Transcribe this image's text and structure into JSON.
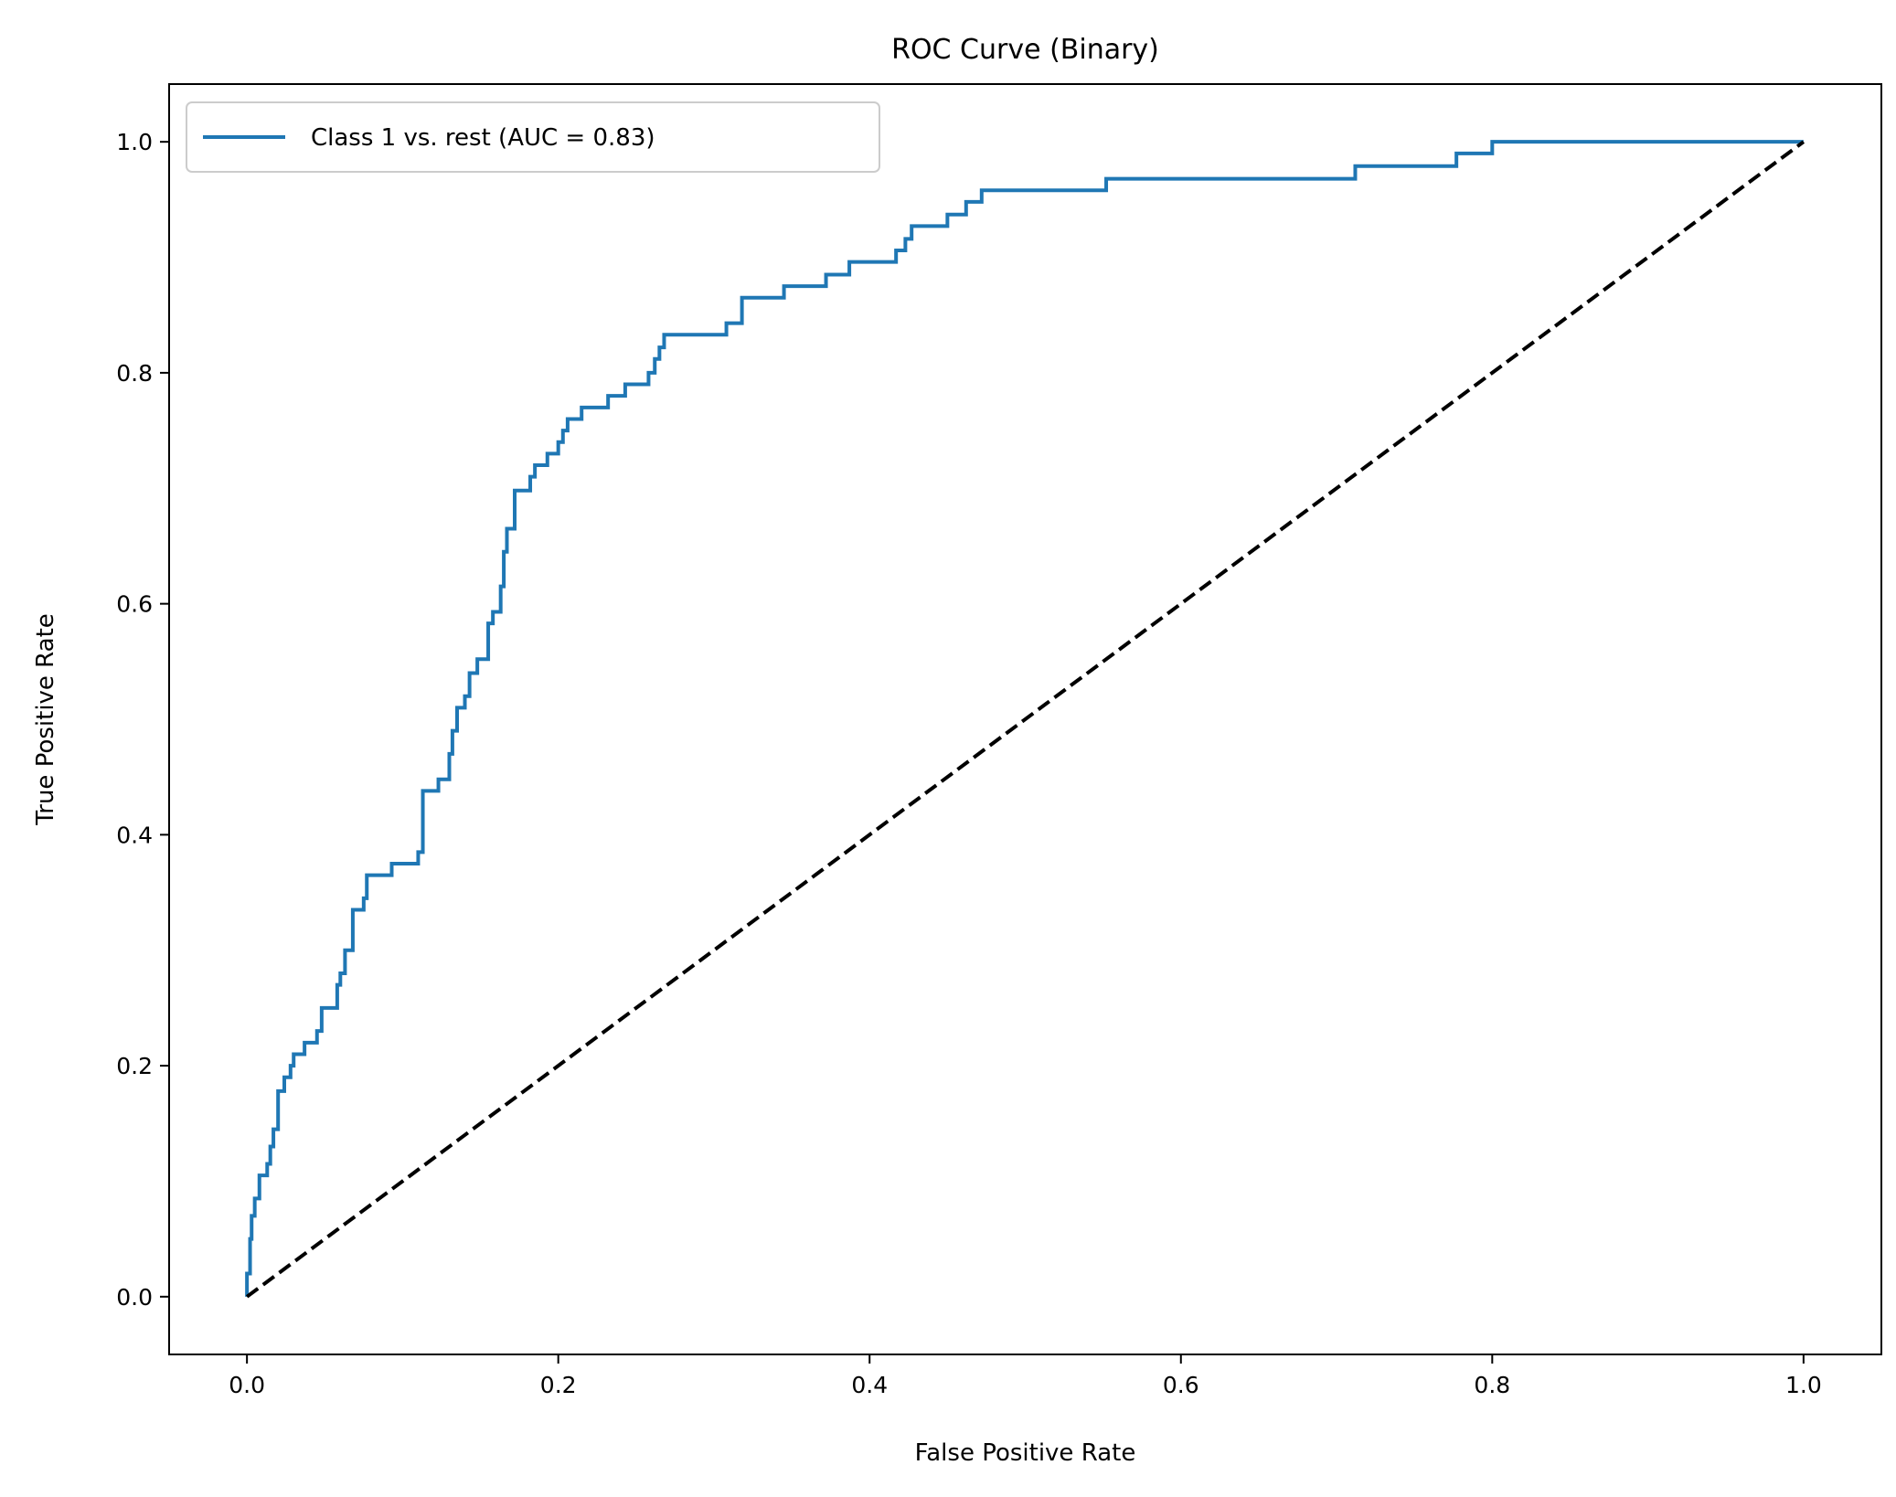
{
  "chart_data": {
    "type": "line",
    "title": "ROC Curve (Binary)",
    "xlabel": "False Positive Rate",
    "ylabel": "True Positive Rate",
    "xlim": [
      -0.05,
      1.05
    ],
    "ylim": [
      -0.05,
      1.05
    ],
    "xticks": [
      "0.0",
      "0.2",
      "0.4",
      "0.6",
      "0.8",
      "1.0"
    ],
    "yticks": [
      "0.0",
      "0.2",
      "0.4",
      "0.6",
      "0.8",
      "1.0"
    ],
    "grid": false,
    "legend_position": "upper left",
    "series": [
      {
        "name": "Class 1 vs. rest (AUC = 0.83)",
        "color": "#1f77b4",
        "style": "solid",
        "step": true,
        "points": [
          [
            0.0,
            0.0
          ],
          [
            0.0,
            0.02
          ],
          [
            0.002,
            0.02
          ],
          [
            0.002,
            0.05
          ],
          [
            0.003,
            0.05
          ],
          [
            0.003,
            0.07
          ],
          [
            0.005,
            0.07
          ],
          [
            0.005,
            0.085
          ],
          [
            0.008,
            0.085
          ],
          [
            0.008,
            0.105
          ],
          [
            0.013,
            0.105
          ],
          [
            0.013,
            0.115
          ],
          [
            0.015,
            0.115
          ],
          [
            0.015,
            0.13
          ],
          [
            0.017,
            0.13
          ],
          [
            0.017,
            0.145
          ],
          [
            0.02,
            0.145
          ],
          [
            0.02,
            0.178
          ],
          [
            0.024,
            0.178
          ],
          [
            0.024,
            0.19
          ],
          [
            0.028,
            0.19
          ],
          [
            0.028,
            0.2
          ],
          [
            0.03,
            0.2
          ],
          [
            0.03,
            0.21
          ],
          [
            0.037,
            0.21
          ],
          [
            0.037,
            0.22
          ],
          [
            0.045,
            0.22
          ],
          [
            0.045,
            0.23
          ],
          [
            0.048,
            0.23
          ],
          [
            0.048,
            0.25
          ],
          [
            0.058,
            0.25
          ],
          [
            0.058,
            0.27
          ],
          [
            0.06,
            0.27
          ],
          [
            0.06,
            0.28
          ],
          [
            0.063,
            0.28
          ],
          [
            0.063,
            0.3
          ],
          [
            0.068,
            0.3
          ],
          [
            0.068,
            0.335
          ],
          [
            0.075,
            0.335
          ],
          [
            0.075,
            0.345
          ],
          [
            0.077,
            0.345
          ],
          [
            0.077,
            0.365
          ],
          [
            0.093,
            0.365
          ],
          [
            0.093,
            0.375
          ],
          [
            0.11,
            0.375
          ],
          [
            0.11,
            0.385
          ],
          [
            0.113,
            0.385
          ],
          [
            0.113,
            0.438
          ],
          [
            0.123,
            0.438
          ],
          [
            0.123,
            0.448
          ],
          [
            0.13,
            0.448
          ],
          [
            0.13,
            0.47
          ],
          [
            0.132,
            0.47
          ],
          [
            0.132,
            0.49
          ],
          [
            0.135,
            0.49
          ],
          [
            0.135,
            0.51
          ],
          [
            0.14,
            0.51
          ],
          [
            0.14,
            0.52
          ],
          [
            0.143,
            0.52
          ],
          [
            0.143,
            0.54
          ],
          [
            0.148,
            0.54
          ],
          [
            0.148,
            0.552
          ],
          [
            0.155,
            0.552
          ],
          [
            0.155,
            0.583
          ],
          [
            0.158,
            0.583
          ],
          [
            0.158,
            0.593
          ],
          [
            0.163,
            0.593
          ],
          [
            0.163,
            0.615
          ],
          [
            0.165,
            0.615
          ],
          [
            0.165,
            0.645
          ],
          [
            0.167,
            0.645
          ],
          [
            0.167,
            0.665
          ],
          [
            0.172,
            0.665
          ],
          [
            0.172,
            0.698
          ],
          [
            0.182,
            0.698
          ],
          [
            0.182,
            0.71
          ],
          [
            0.185,
            0.71
          ],
          [
            0.185,
            0.72
          ],
          [
            0.193,
            0.72
          ],
          [
            0.193,
            0.73
          ],
          [
            0.2,
            0.73
          ],
          [
            0.2,
            0.74
          ],
          [
            0.203,
            0.74
          ],
          [
            0.203,
            0.75
          ],
          [
            0.206,
            0.75
          ],
          [
            0.206,
            0.76
          ],
          [
            0.215,
            0.76
          ],
          [
            0.215,
            0.77
          ],
          [
            0.232,
            0.77
          ],
          [
            0.232,
            0.78
          ],
          [
            0.243,
            0.78
          ],
          [
            0.243,
            0.79
          ],
          [
            0.258,
            0.79
          ],
          [
            0.258,
            0.8
          ],
          [
            0.262,
            0.8
          ],
          [
            0.262,
            0.812
          ],
          [
            0.265,
            0.812
          ],
          [
            0.265,
            0.822
          ],
          [
            0.268,
            0.822
          ],
          [
            0.268,
            0.833
          ],
          [
            0.308,
            0.833
          ],
          [
            0.308,
            0.843
          ],
          [
            0.318,
            0.843
          ],
          [
            0.318,
            0.865
          ],
          [
            0.345,
            0.865
          ],
          [
            0.345,
            0.875
          ],
          [
            0.372,
            0.875
          ],
          [
            0.372,
            0.885
          ],
          [
            0.387,
            0.885
          ],
          [
            0.387,
            0.896
          ],
          [
            0.417,
            0.896
          ],
          [
            0.417,
            0.906
          ],
          [
            0.423,
            0.906
          ],
          [
            0.423,
            0.916
          ],
          [
            0.427,
            0.916
          ],
          [
            0.427,
            0.927
          ],
          [
            0.45,
            0.927
          ],
          [
            0.45,
            0.937
          ],
          [
            0.462,
            0.937
          ],
          [
            0.462,
            0.948
          ],
          [
            0.472,
            0.948
          ],
          [
            0.472,
            0.958
          ],
          [
            0.552,
            0.958
          ],
          [
            0.552,
            0.968
          ],
          [
            0.712,
            0.968
          ],
          [
            0.712,
            0.979
          ],
          [
            0.777,
            0.979
          ],
          [
            0.777,
            0.99
          ],
          [
            0.8,
            0.99
          ],
          [
            0.8,
            1.0
          ],
          [
            1.0,
            1.0
          ]
        ]
      },
      {
        "name": "",
        "color": "#000000",
        "style": "dashed",
        "step": false,
        "points": [
          [
            0.0,
            0.0
          ],
          [
            1.0,
            1.0
          ]
        ]
      }
    ]
  }
}
